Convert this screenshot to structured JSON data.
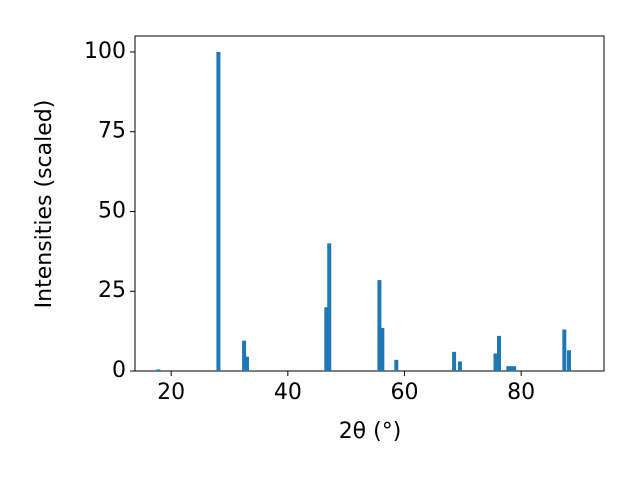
{
  "chart_data": {
    "type": "bar",
    "xlabel": "2θ (°)",
    "ylabel": "Intensities (scaled)",
    "x": [
      17.8,
      28.1,
      32.5,
      33.0,
      46.6,
      47.1,
      55.7,
      56.2,
      58.6,
      68.5,
      69.5,
      75.6,
      76.2,
      77.8,
      78.3,
      78.8,
      87.4,
      88.2
    ],
    "values": [
      0.5,
      100,
      9.5,
      4.5,
      20,
      40,
      28.5,
      13.5,
      3.5,
      6,
      3,
      5.5,
      11,
      1.5,
      1.5,
      1.5,
      13,
      6.5
    ],
    "color": "#1f77b4",
    "xlim": [
      13.8,
      94.2
    ],
    "ylim": [
      0,
      105
    ],
    "xticks": [
      20,
      40,
      60,
      80
    ],
    "yticks": [
      0,
      25,
      50,
      75,
      100
    ],
    "grid": false
  }
}
